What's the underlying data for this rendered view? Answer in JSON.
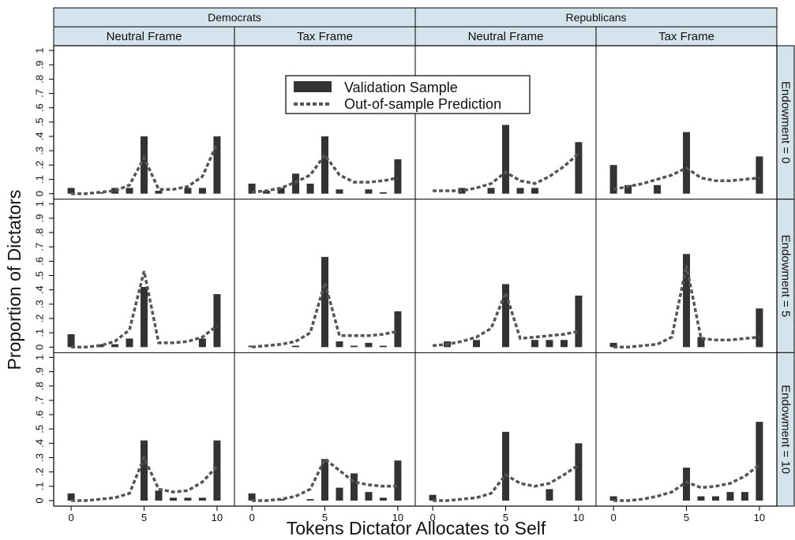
{
  "chart_data": {
    "type": "bar",
    "xlabel": "Tokens Dictator Allocates to Self",
    "ylabel": "Proportion of Dictators",
    "x": [
      0,
      1,
      2,
      3,
      4,
      5,
      6,
      7,
      8,
      9,
      10
    ],
    "x_ticks": [
      "0",
      "5",
      "10"
    ],
    "y_ticks": [
      "0",
      ".1",
      ".2",
      ".3",
      ".4",
      ".5",
      ".6",
      ".7",
      ".8",
      ".9",
      "1"
    ],
    "ylim": [
      0,
      1
    ],
    "xlim": [
      -0.6,
      10.6
    ],
    "legend": {
      "placement": "top-center",
      "entries": [
        "Validation Sample",
        "Out-of-sample Prediction"
      ]
    },
    "column_groups": [
      "Democrats",
      "Republicans"
    ],
    "columns": [
      "Neutral Frame",
      "Tax Frame",
      "Neutral Frame",
      "Tax Frame"
    ],
    "rows": [
      "Endowment = 0",
      "Endowment = 5",
      "Endowment = 10"
    ],
    "colors": {
      "bar": "#333333",
      "prediction": "#555555",
      "strip": "#d4e3ec"
    },
    "series": [
      {
        "name": "Validation Sample",
        "style": "bar"
      },
      {
        "name": "Out-of-sample Prediction",
        "style": "dashed-line"
      }
    ],
    "panels": [
      [
        {
          "bars": [
            0.04,
            0.0,
            0.01,
            0.04,
            0.04,
            0.4,
            0.02,
            0.0,
            0.04,
            0.04,
            0.4
          ],
          "prediction": [
            0.0,
            0.0,
            0.01,
            0.02,
            0.06,
            0.25,
            0.03,
            0.03,
            0.05,
            0.12,
            0.35
          ]
        },
        {
          "bars": [
            0.07,
            0.02,
            0.04,
            0.14,
            0.07,
            0.4,
            0.03,
            0.0,
            0.03,
            0.01,
            0.24
          ],
          "prediction": [
            0.01,
            0.02,
            0.04,
            0.08,
            0.13,
            0.27,
            0.13,
            0.08,
            0.08,
            0.09,
            0.11
          ]
        },
        {
          "bars": [
            0.0,
            0.0,
            0.04,
            0.0,
            0.04,
            0.48,
            0.04,
            0.04,
            0.0,
            0.0,
            0.36
          ],
          "prediction": [
            0.02,
            0.02,
            0.02,
            0.04,
            0.07,
            0.15,
            0.09,
            0.07,
            0.12,
            0.19,
            0.28
          ]
        },
        {
          "bars": [
            0.2,
            0.06,
            0.0,
            0.06,
            0.0,
            0.43,
            0.0,
            0.0,
            0.0,
            0.0,
            0.26
          ],
          "prediction": [
            0.03,
            0.05,
            0.07,
            0.1,
            0.13,
            0.18,
            0.11,
            0.09,
            0.09,
            0.1,
            0.11
          ]
        }
      ],
      [
        {
          "bars": [
            0.09,
            0.0,
            0.02,
            0.02,
            0.06,
            0.42,
            0.0,
            0.0,
            0.0,
            0.06,
            0.37
          ],
          "prediction": [
            0.0,
            0.0,
            0.01,
            0.04,
            0.12,
            0.53,
            0.03,
            0.03,
            0.04,
            0.07,
            0.15
          ]
        },
        {
          "bars": [
            0.01,
            0.0,
            0.0,
            0.01,
            0.0,
            0.63,
            0.04,
            0.01,
            0.03,
            0.01,
            0.25
          ],
          "prediction": [
            0.0,
            0.01,
            0.02,
            0.04,
            0.1,
            0.45,
            0.08,
            0.08,
            0.08,
            0.09,
            0.11
          ]
        },
        {
          "bars": [
            0.0,
            0.04,
            0.0,
            0.05,
            0.0,
            0.44,
            0.0,
            0.05,
            0.05,
            0.05,
            0.36
          ],
          "prediction": [
            0.01,
            0.02,
            0.04,
            0.07,
            0.13,
            0.38,
            0.06,
            0.07,
            0.08,
            0.09,
            0.11
          ]
        },
        {
          "bars": [
            0.03,
            0.0,
            0.0,
            0.0,
            0.0,
            0.65,
            0.07,
            0.0,
            0.0,
            0.0,
            0.27
          ],
          "prediction": [
            0.0,
            0.0,
            0.01,
            0.02,
            0.07,
            0.57,
            0.06,
            0.05,
            0.05,
            0.06,
            0.07
          ]
        }
      ],
      [
        {
          "bars": [
            0.05,
            0.0,
            0.0,
            0.0,
            0.0,
            0.42,
            0.07,
            0.02,
            0.02,
            0.02,
            0.42
          ],
          "prediction": [
            0.0,
            0.0,
            0.01,
            0.02,
            0.05,
            0.3,
            0.08,
            0.06,
            0.07,
            0.13,
            0.24
          ]
        },
        {
          "bars": [
            0.05,
            0.0,
            0.01,
            0.0,
            0.01,
            0.29,
            0.09,
            0.19,
            0.06,
            0.02,
            0.28
          ],
          "prediction": [
            0.0,
            0.0,
            0.01,
            0.03,
            0.08,
            0.29,
            0.21,
            0.13,
            0.11,
            0.1,
            0.1
          ]
        },
        {
          "bars": [
            0.04,
            0.0,
            0.0,
            0.0,
            0.0,
            0.48,
            0.0,
            0.0,
            0.08,
            0.0,
            0.4
          ],
          "prediction": [
            0.0,
            0.0,
            0.01,
            0.02,
            0.05,
            0.18,
            0.12,
            0.1,
            0.12,
            0.18,
            0.25
          ]
        },
        {
          "bars": [
            0.03,
            0.0,
            0.0,
            0.0,
            0.0,
            0.23,
            0.03,
            0.03,
            0.06,
            0.06,
            0.55
          ],
          "prediction": [
            0.0,
            0.0,
            0.01,
            0.03,
            0.06,
            0.13,
            0.09,
            0.1,
            0.12,
            0.17,
            0.25
          ]
        }
      ]
    ]
  }
}
